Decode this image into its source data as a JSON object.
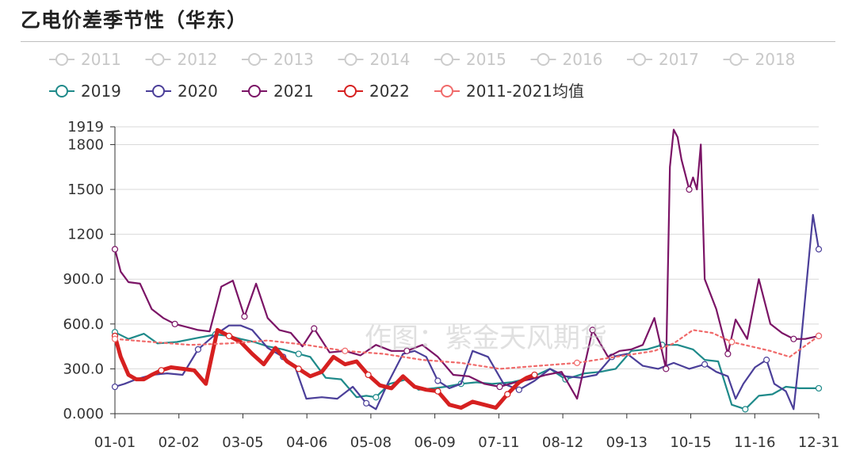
{
  "title": "乙电价差季节性（华东）",
  "watermark": "作图：紫金天风期货",
  "chart_data": {
    "type": "line",
    "title": "乙电价差季节性（华东）",
    "xlabel": "",
    "ylabel": "",
    "x_ticks": [
      "01-01",
      "02-02",
      "03-05",
      "04-06",
      "05-08",
      "06-09",
      "07-11",
      "08-12",
      "09-13",
      "10-15",
      "11-16",
      "12-31"
    ],
    "y_ticks": [
      "0.000",
      "300.0",
      "600.0",
      "900.0",
      "1200",
      "1500",
      "1800",
      "1919"
    ],
    "ylim": [
      0,
      1919
    ],
    "grid": "horizontal",
    "legend_position": "top",
    "series": [
      {
        "name": "2011",
        "color": "#cccccc",
        "hidden": true,
        "x": [],
        "values": []
      },
      {
        "name": "2012",
        "color": "#cccccc",
        "hidden": true,
        "x": [],
        "values": []
      },
      {
        "name": "2013",
        "color": "#cccccc",
        "hidden": true,
        "x": [],
        "values": []
      },
      {
        "name": "2014",
        "color": "#cccccc",
        "hidden": true,
        "x": [],
        "values": []
      },
      {
        "name": "2015",
        "color": "#cccccc",
        "hidden": true,
        "x": [],
        "values": []
      },
      {
        "name": "2016",
        "color": "#cccccc",
        "hidden": true,
        "x": [],
        "values": []
      },
      {
        "name": "2017",
        "color": "#cccccc",
        "hidden": true,
        "x": [],
        "values": []
      },
      {
        "name": "2018",
        "color": "#cccccc",
        "hidden": true,
        "x": [],
        "values": []
      },
      {
        "name": "2019",
        "color": "#1f8a8a",
        "width": 2.2,
        "dash": "",
        "hidden": false,
        "x": [
          1,
          8,
          16,
          23,
          33,
          43,
          53,
          60,
          66,
          73,
          80,
          88,
          96,
          102,
          110,
          118,
          126,
          131,
          136,
          143,
          152,
          158,
          166,
          172,
          180,
          188,
          196,
          206,
          216,
          226,
          234,
          244,
          252,
          260,
          268,
          276,
          284,
          292,
          300,
          306,
          313,
          320,
          327,
          334,
          341,
          348,
          355,
          365
        ],
        "values": [
          545,
          500,
          535,
          470,
          480,
          505,
          530,
          520,
          500,
          480,
          450,
          430,
          400,
          380,
          240,
          230,
          110,
          120,
          110,
          200,
          230,
          160,
          170,
          180,
          200,
          210,
          200,
          210,
          240,
          300,
          230,
          270,
          280,
          300,
          420,
          430,
          460,
          460,
          430,
          360,
          350,
          60,
          30,
          120,
          130,
          180,
          170,
          170
        ]
      },
      {
        "name": "2020",
        "color": "#4b3f99",
        "width": 2.2,
        "dash": "",
        "hidden": false,
        "x": [
          1,
          6,
          12,
          20,
          28,
          36,
          44,
          52,
          60,
          66,
          72,
          80,
          88,
          94,
          100,
          108,
          116,
          124,
          131,
          136,
          142,
          150,
          156,
          162,
          168,
          174,
          180,
          186,
          194,
          202,
          210,
          218,
          226,
          234,
          242,
          250,
          258,
          266,
          274,
          282,
          290,
          298,
          306,
          312,
          318,
          322,
          326,
          332,
          338,
          342,
          348,
          352,
          356,
          362,
          365
        ],
        "values": [
          180,
          200,
          230,
          260,
          270,
          260,
          430,
          520,
          590,
          590,
          560,
          440,
          380,
          320,
          100,
          110,
          100,
          180,
          70,
          30,
          200,
          400,
          420,
          380,
          220,
          170,
          200,
          420,
          380,
          200,
          160,
          220,
          300,
          250,
          240,
          260,
          380,
          400,
          320,
          300,
          340,
          300,
          330,
          280,
          250,
          100,
          200,
          310,
          360,
          200,
          150,
          30,
          500,
          1330,
          1100
        ]
      },
      {
        "name": "2021",
        "color": "#7b1466",
        "width": 2.2,
        "dash": "",
        "hidden": false,
        "x": [
          1,
          4,
          8,
          14,
          20,
          26,
          32,
          38,
          44,
          50,
          56,
          62,
          68,
          74,
          80,
          86,
          92,
          98,
          104,
          112,
          120,
          128,
          136,
          144,
          152,
          160,
          168,
          176,
          184,
          192,
          200,
          208,
          216,
          224,
          232,
          240,
          248,
          256,
          262,
          268,
          274,
          280,
          286,
          288,
          290,
          292,
          294,
          296,
          298,
          300,
          302,
          304,
          306,
          312,
          318,
          322,
          328,
          334,
          340,
          346,
          352,
          358,
          365
        ],
        "values": [
          1100,
          950,
          880,
          870,
          700,
          640,
          600,
          580,
          560,
          550,
          850,
          890,
          650,
          870,
          640,
          560,
          540,
          450,
          570,
          410,
          420,
          390,
          460,
          420,
          420,
          460,
          380,
          260,
          250,
          200,
          180,
          210,
          230,
          260,
          280,
          100,
          560,
          380,
          420,
          430,
          460,
          640,
          300,
          1650,
          1900,
          1850,
          1700,
          1600,
          1500,
          1580,
          1500,
          1800,
          900,
          700,
          400,
          630,
          500,
          900,
          600,
          540,
          500,
          500,
          520
        ]
      },
      {
        "name": "2022",
        "color": "#d62020",
        "width": 5,
        "dash": "",
        "hidden": false,
        "x": [
          1,
          4,
          8,
          12,
          16,
          20,
          25,
          30,
          36,
          42,
          48,
          54,
          60,
          66,
          72,
          78,
          84,
          90,
          96,
          102,
          108,
          114,
          120,
          126,
          132,
          138,
          144,
          150,
          156,
          162,
          168,
          174,
          180,
          186,
          192,
          198,
          204,
          210,
          214,
          218
        ],
        "values": [
          520,
          380,
          260,
          230,
          230,
          260,
          290,
          310,
          300,
          290,
          200,
          560,
          520,
          480,
          400,
          330,
          440,
          350,
          300,
          250,
          280,
          380,
          330,
          350,
          260,
          190,
          170,
          250,
          180,
          160,
          150,
          60,
          40,
          80,
          60,
          40,
          130,
          210,
          240,
          260
        ]
      },
      {
        "name": "2011-2021均值",
        "color": "#f06a6a",
        "width": 2.2,
        "dash": "3,4",
        "hidden": false,
        "x": [
          1,
          20,
          40,
          60,
          80,
          100,
          120,
          140,
          160,
          180,
          200,
          220,
          240,
          260,
          280,
          290,
          300,
          310,
          320,
          330,
          340,
          350,
          365
        ],
        "values": [
          500,
          480,
          460,
          470,
          490,
          460,
          420,
          400,
          360,
          340,
          300,
          320,
          340,
          380,
          420,
          470,
          560,
          540,
          480,
          450,
          420,
          380,
          520
        ]
      }
    ]
  }
}
